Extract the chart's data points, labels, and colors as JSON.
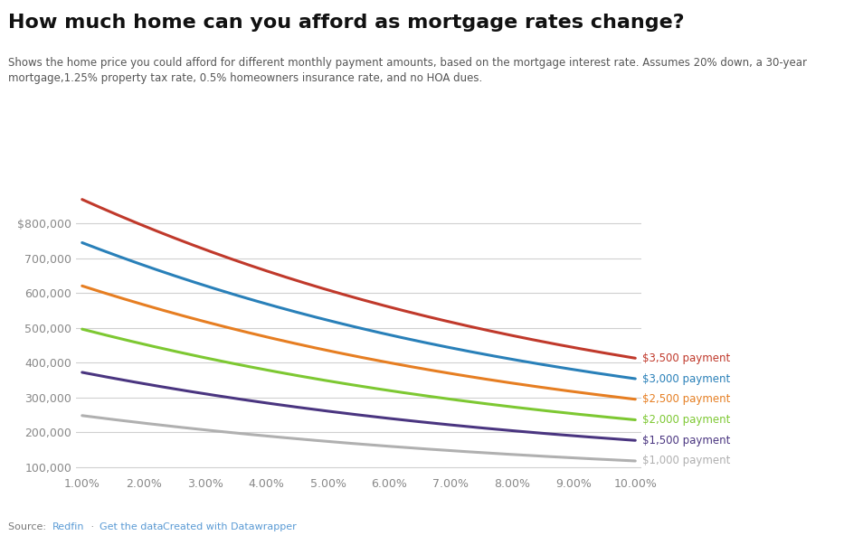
{
  "title": "How much home can you afford as mortgage rates change?",
  "subtitle": "Shows the home price you could afford for different monthly payment amounts, based on the mortgage interest rate. Assumes 20% down, a 30-year\nmortgage,1.25% property tax rate, 0.5% homeowners insurance rate, and no HOA dues.",
  "x_ticks": [
    1.0,
    2.0,
    3.0,
    4.0,
    5.0,
    6.0,
    7.0,
    8.0,
    9.0,
    10.0
  ],
  "y_ticks": [
    100000,
    200000,
    300000,
    400000,
    500000,
    600000,
    700000,
    800000
  ],
  "series": [
    {
      "label": "$3,500 payment",
      "color": "#c0392b",
      "monthly": 3500
    },
    {
      "label": "$3,000 payment",
      "color": "#2980b9",
      "monthly": 3000
    },
    {
      "label": "$2,500 payment",
      "color": "#e67e22",
      "monthly": 2500
    },
    {
      "label": "$2,000 payment",
      "color": "#7dc832",
      "monthly": 2000
    },
    {
      "label": "$1,500 payment",
      "color": "#4a3580",
      "monthly": 1500
    },
    {
      "label": "$1,000 payment",
      "color": "#b0b0b0",
      "monthly": 1000
    }
  ],
  "x_min": 1.0,
  "x_max": 10.0,
  "y_min": 80000,
  "y_max": 940000,
  "background_color": "#ffffff",
  "grid_color": "#d0d0d0",
  "source_color": "#5b9bd5",
  "source_plain_color": "#777777",
  "title_fontsize": 16,
  "subtitle_fontsize": 8.5,
  "label_fontsize": 8.5,
  "tick_fontsize": 9
}
